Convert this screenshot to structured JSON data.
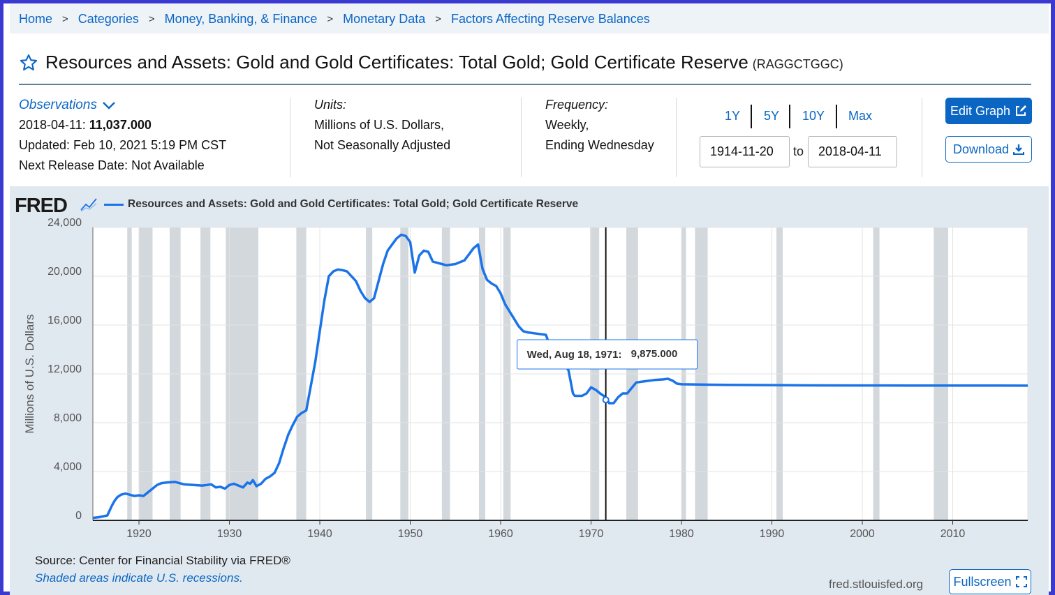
{
  "breadcrumb": [
    "Home",
    "Categories",
    "Money, Banking, & Finance",
    "Monetary Data",
    "Factors Affecting Reserve Balances"
  ],
  "breadcrumb_sep": ">",
  "series": {
    "title": "Resources and Assets: Gold and Gold Certificates: Total Gold; Gold Certificate Reserve",
    "id": "(RAGGCTGGC)"
  },
  "observations": {
    "label": "Observations",
    "date": "2018-04-11:",
    "value": "11,037.000",
    "updated": "Updated: Feb 10, 2021 5:19 PM CST",
    "next_release": "Next Release Date: Not Available"
  },
  "units": {
    "label": "Units:",
    "line1": "Millions of U.S. Dollars,",
    "line2": "Not Seasonally Adjusted"
  },
  "frequency": {
    "label": "Frequency:",
    "line1": "Weekly,",
    "line2": "Ending Wednesday"
  },
  "range_buttons": [
    "1Y",
    "5Y",
    "10Y",
    "Max"
  ],
  "date_range": {
    "start": "1914-11-20",
    "to": "to",
    "end": "2018-04-11"
  },
  "buttons": {
    "edit": "Edit Graph",
    "download": "Download",
    "fullscreen": "Fullscreen"
  },
  "fred_logo": "FRED",
  "footer": {
    "source": "Source: Center for Financial Stability via FRED®",
    "note": "Shaded areas indicate U.S. recessions.",
    "site": "fred.stlouisfed.org"
  },
  "colors": {
    "accent": "#0b66c3",
    "line": "#1a73e8",
    "recession": "#d3d8dd",
    "chart_bg": "#e1e9f0"
  },
  "chart_data": {
    "type": "line",
    "title": "Resources and Assets: Gold and Gold Certificates: Total Gold; Gold Certificate Reserve",
    "xlabel": "",
    "ylabel": "Millions of U.S. Dollars",
    "xlim": [
      1914.9,
      2018.3
    ],
    "ylim": [
      0,
      24000
    ],
    "yticks": [
      0,
      4000,
      8000,
      12000,
      16000,
      20000,
      24000
    ],
    "ytick_labels": [
      "0",
      "4,000",
      "8,000",
      "12,000",
      "16,000",
      "20,000",
      "24,000"
    ],
    "xticks": [
      1920,
      1930,
      1940,
      1950,
      1960,
      1970,
      1980,
      1990,
      2000,
      2010
    ],
    "xtick_labels": [
      "1920",
      "1930",
      "1940",
      "1950",
      "1960",
      "1970",
      "1980",
      "1990",
      "2000",
      "2010"
    ],
    "grid": true,
    "recessions": [
      [
        1918.7,
        1919.2
      ],
      [
        1920.0,
        1921.5
      ],
      [
        1923.4,
        1924.6
      ],
      [
        1926.8,
        1927.9
      ],
      [
        1929.6,
        1933.2
      ],
      [
        1937.4,
        1938.5
      ],
      [
        1945.1,
        1945.8
      ],
      [
        1948.9,
        1949.8
      ],
      [
        1953.5,
        1954.4
      ],
      [
        1957.6,
        1958.3
      ],
      [
        1960.3,
        1961.1
      ],
      [
        1969.9,
        1970.9
      ],
      [
        1973.9,
        1975.2
      ],
      [
        1980.0,
        1980.5
      ],
      [
        1981.5,
        1982.9
      ],
      [
        1990.5,
        1991.2
      ],
      [
        2001.2,
        2001.9
      ],
      [
        2007.9,
        2009.5
      ]
    ],
    "series": [
      {
        "name": "Resources and Assets: Gold and Gold Certificates: Total Gold; Gold Certificate Reserve",
        "x": [
          1914.9,
          1915.5,
          1916.5,
          1917.0,
          1917.3,
          1917.6,
          1918.0,
          1918.5,
          1919.0,
          1919.5,
          1920.0,
          1920.5,
          1921.0,
          1921.5,
          1922.0,
          1922.5,
          1923.0,
          1924.0,
          1925.0,
          1926.0,
          1927.0,
          1927.5,
          1928.0,
          1928.5,
          1929.0,
          1929.5,
          1930.0,
          1930.5,
          1931.0,
          1931.5,
          1932.0,
          1932.3,
          1932.6,
          1933.0,
          1933.5,
          1934.0,
          1934.5,
          1935.0,
          1935.5,
          1936.0,
          1936.5,
          1937.0,
          1937.5,
          1938.0,
          1938.5,
          1939.0,
          1939.5,
          1940.0,
          1940.5,
          1941.0,
          1941.5,
          1942.0,
          1942.5,
          1943.0,
          1944.0,
          1944.5,
          1945.0,
          1945.5,
          1946.0,
          1946.5,
          1947.0,
          1947.5,
          1948.0,
          1948.5,
          1949.0,
          1949.5,
          1950.0,
          1950.5,
          1951.0,
          1951.5,
          1952.0,
          1952.5,
          1953.0,
          1953.5,
          1954.0,
          1955.0,
          1956.0,
          1957.0,
          1957.5,
          1958.0,
          1958.5,
          1959.0,
          1959.5,
          1960.0,
          1960.5,
          1961.0,
          1961.5,
          1962.0,
          1962.5,
          1963.0,
          1964.0,
          1965.0,
          1965.2,
          1966.0,
          1967.0,
          1967.5,
          1968.0,
          1968.2,
          1969.0,
          1969.5,
          1970.0,
          1970.5,
          1971.0,
          1971.6,
          1971.8,
          1972.0,
          1972.5,
          1973.0,
          1973.5,
          1974.0,
          1975.0,
          1976.0,
          1977.0,
          1978.0,
          1978.5,
          1979.0,
          1979.5,
          1980.0,
          1985.0,
          1990.0,
          1995.0,
          2000.0,
          2005.0,
          2010.0,
          2015.0,
          2018.3
        ],
        "values": [
          200,
          250,
          400,
          1200,
          1600,
          1900,
          2100,
          2200,
          2100,
          2000,
          2050,
          2000,
          2300,
          2600,
          2900,
          3050,
          3100,
          3150,
          2950,
          2900,
          2850,
          2900,
          2950,
          2700,
          2750,
          2600,
          2900,
          3000,
          2850,
          2700,
          3100,
          3000,
          3300,
          2800,
          3000,
          3400,
          3600,
          3900,
          4700,
          5900,
          7000,
          7800,
          8500,
          8800,
          9000,
          11000,
          13000,
          15500,
          18000,
          20000,
          20400,
          20550,
          20500,
          20400,
          19600,
          18800,
          18200,
          17900,
          18200,
          19600,
          21000,
          22100,
          22600,
          23100,
          23400,
          23300,
          22800,
          20300,
          21700,
          22100,
          22000,
          21200,
          21100,
          21000,
          20900,
          21000,
          21300,
          22300,
          22600,
          20600,
          19700,
          19400,
          19200,
          18600,
          17700,
          17100,
          16500,
          15900,
          15500,
          15400,
          15300,
          15200,
          14800,
          13500,
          12800,
          12300,
          10400,
          10200,
          10200,
          10400,
          10900,
          10700,
          10400,
          10100,
          9875,
          9600,
          9600,
          10100,
          10400,
          10400,
          11300,
          11400,
          11500,
          11550,
          11600,
          11450,
          11200,
          11150,
          11100,
          11080,
          11060,
          11050,
          11045,
          11041,
          11038,
          11037
        ]
      }
    ],
    "tooltip": {
      "date": "Wed, Aug 18, 1971:",
      "value": "9,875.000",
      "x": 1971.63,
      "y": 9875
    }
  }
}
